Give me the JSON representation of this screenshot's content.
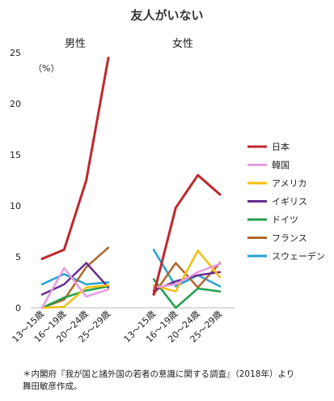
{
  "chart_data": {
    "type": "line",
    "title": "友人がいない",
    "unit": "（%）",
    "ylim": [
      0,
      25
    ],
    "yticks": [
      0,
      5,
      10,
      15,
      20,
      25
    ],
    "grid": false,
    "legend_position": "right",
    "categories": [
      "13～15歳",
      "16～19歳",
      "20～24歳",
      "25～29歳"
    ],
    "panels": [
      {
        "name": "男性",
        "series": [
          {
            "name": "日本",
            "color": "#c0272d",
            "values": [
              4.8,
              5.7,
              12.5,
              24.5
            ]
          },
          {
            "name": "韓国",
            "color": "#e79be0",
            "values": [
              0.0,
              3.9,
              1.1,
              1.8
            ]
          },
          {
            "name": "アメリカ",
            "color": "#f4c010",
            "values": [
              0.0,
              0.1,
              2.0,
              2.2
            ]
          },
          {
            "name": "イギリス",
            "color": "#6a2c8e",
            "values": [
              1.3,
              2.3,
              4.4,
              2.0
            ]
          },
          {
            "name": "ドイツ",
            "color": "#22a04b",
            "values": [
              0.0,
              1.0,
              1.7,
              2.1
            ]
          },
          {
            "name": "フランス",
            "color": "#b4652c",
            "values": [
              0.0,
              0.8,
              4.0,
              5.9
            ]
          },
          {
            "name": "スウェーデン",
            "color": "#26a2d0",
            "values": [
              2.3,
              3.3,
              2.3,
              2.5
            ]
          }
        ]
      },
      {
        "name": "女性",
        "series": [
          {
            "name": "日本",
            "color": "#c0272d",
            "values": [
              1.3,
              9.8,
              13.0,
              11.1
            ]
          },
          {
            "name": "韓国",
            "color": "#e79be0",
            "values": [
              2.0,
              2.3,
              3.5,
              4.3
            ]
          },
          {
            "name": "アメリカ",
            "color": "#f4c010",
            "values": [
              2.2,
              1.6,
              5.6,
              3.0
            ]
          },
          {
            "name": "イギリス",
            "color": "#6a2c8e",
            "values": [
              1.7,
              2.6,
              3.2,
              3.5
            ]
          },
          {
            "name": "ドイツ",
            "color": "#22a04b",
            "values": [
              2.8,
              0.0,
              1.9,
              1.6
            ]
          },
          {
            "name": "フランス",
            "color": "#b4652c",
            "values": [
              1.3,
              4.4,
              2.0,
              4.4
            ]
          },
          {
            "name": "スウェーデン",
            "color": "#26a2d0",
            "values": [
              5.7,
              2.1,
              3.2,
              2.1
            ]
          }
        ]
      }
    ]
  },
  "note_line1": "＊内閣府『我が国と諸外国の若者の意識に関する調査』（2018年）より",
  "note_line2": "舞田敏彦作成。"
}
